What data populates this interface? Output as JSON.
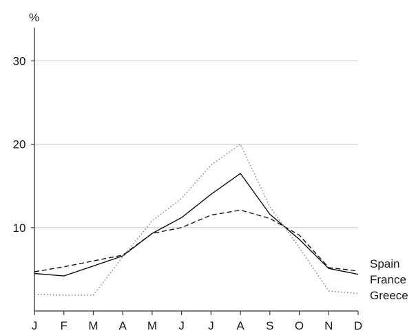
{
  "chart_data": {
    "type": "line",
    "title": "",
    "xlabel": "",
    "ylabel": "%",
    "ylim": [
      0,
      34
    ],
    "yticks": [
      10,
      20,
      30
    ],
    "grid": true,
    "legend_position": "right",
    "categories": [
      "J",
      "F",
      "M",
      "A",
      "M",
      "J",
      "J",
      "A",
      "S",
      "O",
      "N",
      "D"
    ],
    "series": [
      {
        "name": "Spain",
        "line_style": "solid",
        "color": "#111111",
        "values": [
          4.5,
          4.2,
          5.4,
          6.6,
          9.3,
          11.2,
          14.0,
          16.5,
          11.6,
          8.6,
          5.1,
          4.4
        ]
      },
      {
        "name": "France",
        "line_style": "dashed",
        "color": "#111111",
        "values": [
          4.7,
          5.3,
          6.0,
          6.7,
          9.3,
          10.0,
          11.5,
          12.1,
          11.1,
          9.1,
          5.2,
          4.8
        ]
      },
      {
        "name": "Greece",
        "line_style": "dotted",
        "color": "#888888",
        "values": [
          2.0,
          1.9,
          1.9,
          6.5,
          10.8,
          13.5,
          17.5,
          20.0,
          12.5,
          7.6,
          2.4,
          2.1
        ]
      }
    ]
  }
}
